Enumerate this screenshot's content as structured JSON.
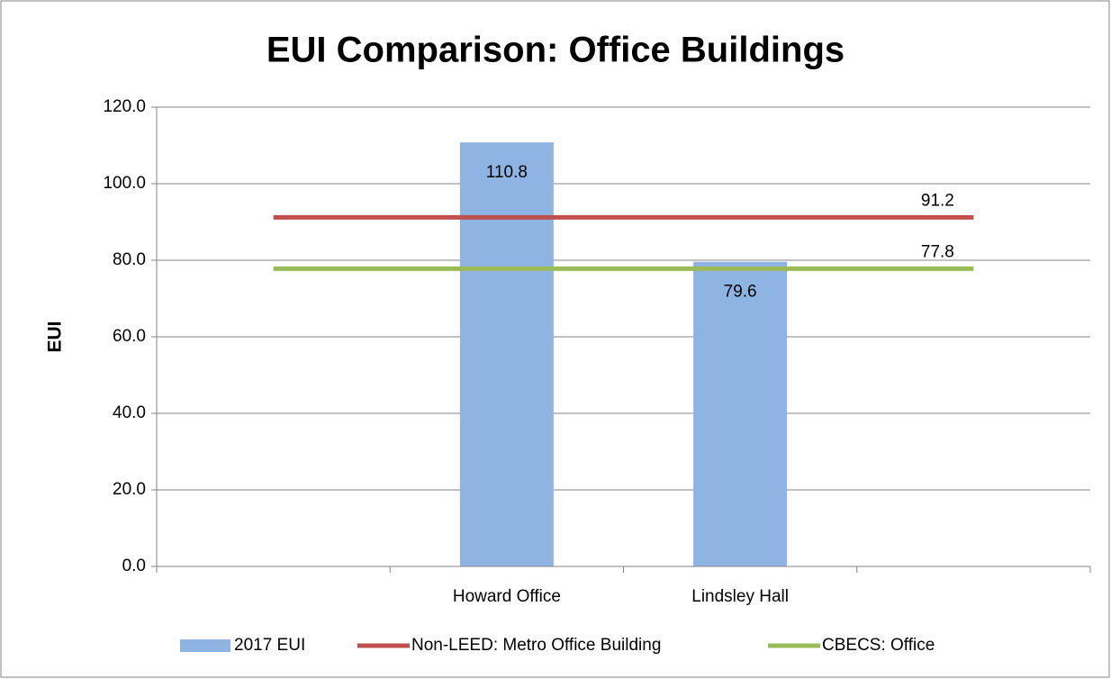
{
  "chart_data": {
    "type": "bar",
    "title": "EUI Comparison: Office Buildings",
    "y_label": "EUI",
    "categories": [
      null,
      "Howard Office",
      "Lindsley Hall",
      null
    ],
    "series": [
      {
        "name": "2017 EUI",
        "type": "bar",
        "color": "#8eb4e3",
        "values": [
          null,
          110.8,
          79.6,
          null
        ]
      },
      {
        "name": "Non-LEED: Metro Office Building",
        "type": "line",
        "color": "#c0504d",
        "values": [
          91.2,
          91.2,
          91.2,
          91.2
        ]
      },
      {
        "name": "CBECS: Office",
        "type": "line",
        "color": "#9bbb59",
        "values": [
          77.8,
          77.8,
          77.8,
          77.8
        ]
      }
    ],
    "ylim": [
      0,
      120
    ],
    "yticks": [
      {
        "value": 0,
        "label": "0.0"
      },
      {
        "value": 20,
        "label": "20.0"
      },
      {
        "value": 40,
        "label": "40.0"
      },
      {
        "value": 60,
        "label": "60.0"
      },
      {
        "value": 80,
        "label": "80.0"
      },
      {
        "value": 100,
        "label": "100.0"
      },
      {
        "value": 120,
        "label": "120.0"
      }
    ],
    "grid": true,
    "legend": "bottom"
  }
}
